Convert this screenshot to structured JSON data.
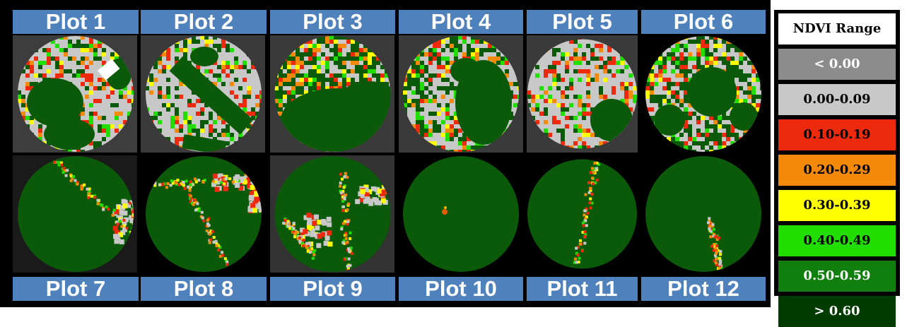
{
  "plots": [
    {
      "label": "Plot 1",
      "bg": "#3d3d3d",
      "cover": {
        "gray": 0.5,
        "red": 0.12,
        "orange": 0.07,
        "yellow": 0.05,
        "lime": 0.06,
        "green": 0.2
      },
      "blobs": [
        [
          60,
          95,
          40,
          34
        ],
        [
          80,
          140,
          36,
          22
        ],
        [
          150,
          55,
          18,
          22
        ]
      ],
      "notch": [
        [
          120,
          50,
          26,
          18
        ]
      ]
    },
    {
      "label": "Plot 2",
      "bg": "#3a3a3a",
      "cover": {
        "gray": 0.55,
        "red": 0.1,
        "orange": 0.06,
        "yellow": 0.04,
        "lime": 0.05,
        "green": 0.2
      },
      "bands": [
        [
          50,
          40,
          150,
          130,
          14
        ],
        [
          60,
          150,
          120,
          160,
          10
        ]
      ],
      "blobs": [
        [
          90,
          30,
          20,
          14
        ]
      ]
    },
    {
      "label": "Plot 3",
      "bg": "#3a3a3a",
      "cover": {
        "gray": 0.2,
        "red": 0.12,
        "orange": 0.1,
        "yellow": 0.1,
        "lime": 0.06,
        "green": 0.42
      },
      "blobs": [
        [
          95,
          120,
          80,
          45
        ],
        [
          140,
          95,
          45,
          30
        ]
      ],
      "tophalf": true
    },
    {
      "label": "Plot 4",
      "bg": "#3a3a3a",
      "cover": {
        "gray": 0.42,
        "red": 0.1,
        "orange": 0.06,
        "yellow": 0.08,
        "lime": 0.08,
        "green": 0.26
      },
      "blobs": [
        [
          120,
          95,
          40,
          60
        ],
        [
          95,
          50,
          22,
          18
        ]
      ]
    },
    {
      "label": "Plot 5",
      "bg": "#3a3a3a",
      "cover": {
        "gray": 0.6,
        "red": 0.13,
        "orange": 0.06,
        "yellow": 0.04,
        "lime": 0.05,
        "green": 0.12
      },
      "blobs": [
        [
          120,
          120,
          30,
          30
        ]
      ]
    },
    {
      "label": "Plot 6",
      "bg": "#000000",
      "cover": {
        "gray": 0.3,
        "red": 0.1,
        "orange": 0.06,
        "yellow": 0.08,
        "lime": 0.08,
        "green": 0.38
      },
      "blobs": [
        [
          100,
          80,
          35,
          35
        ],
        [
          40,
          120,
          22,
          22
        ],
        [
          145,
          115,
          20,
          20
        ]
      ],
      "diamond": true
    },
    {
      "label": "Plot 7",
      "bg": "#1a1a1a",
      "cover": {
        "green": 1
      },
      "edge": [
        [
          60,
          10,
          170,
          110
        ],
        [
          170,
          60,
          176,
          120
        ]
      ],
      "gray_region": [
        [
          140,
          60,
          40,
          60
        ]
      ]
    },
    {
      "label": "Plot 8",
      "bg": "#000000",
      "cover": {
        "green": 1
      },
      "edge": [
        [
          20,
          40,
          160,
          30
        ],
        [
          60,
          40,
          120,
          150
        ]
      ],
      "gray_region": [
        [
          100,
          25,
          60,
          20
        ],
        [
          150,
          50,
          20,
          25
        ]
      ]
    },
    {
      "label": "Plot 9",
      "bg": "#333333",
      "cover": {
        "green": 1
      },
      "edge": [
        [
          100,
          20,
          110,
          160
        ],
        [
          20,
          90,
          60,
          140
        ]
      ],
      "gray_region": [
        [
          40,
          80,
          45,
          45
        ],
        [
          120,
          40,
          40,
          25
        ]
      ]
    },
    {
      "label": "Plot 10",
      "bg": "#000000",
      "cover": {
        "green": 1
      },
      "edge": [],
      "spots": [
        [
          65,
          80,
          4,
          "#e85a00"
        ],
        [
          66,
          74,
          2,
          "#ffb000"
        ]
      ]
    },
    {
      "label": "Plot 11",
      "bg": "#000000",
      "cover": {
        "green": 1
      },
      "edge": [
        [
          95,
          10,
          70,
          150
        ]
      ]
    },
    {
      "label": "Plot 12",
      "bg": "#000000",
      "cover": {
        "green": 1
      },
      "edge": [
        [
          95,
          90,
          110,
          160
        ]
      ]
    }
  ],
  "legend": {
    "title": "NDVI Range",
    "items": [
      {
        "label": "< 0.00",
        "bg": "#8c8c8c",
        "fg": "#ffffff"
      },
      {
        "label": "0.00-0.09",
        "bg": "#c8c8c8",
        "fg": "#000000"
      },
      {
        "label": "0.10-0.19",
        "bg": "#ee2a0e",
        "fg": "#000000"
      },
      {
        "label": "0.20-0.29",
        "bg": "#f58a0a",
        "fg": "#000000"
      },
      {
        "label": "0.30-0.39",
        "bg": "#ffff00",
        "fg": "#000000"
      },
      {
        "label": "0.40-0.49",
        "bg": "#22dd00",
        "fg": "#000000"
      },
      {
        "label": "0.50-0.59",
        "bg": "#117f0d",
        "fg": "#ffffff"
      },
      {
        "label": "> 0.60",
        "bg": "#003c00",
        "fg": "#ffffff"
      }
    ]
  },
  "palette": {
    "gray": "#c8c8c8",
    "red": "#ee2a0e",
    "orange": "#f58a0a",
    "yellow": "#ffff00",
    "lime": "#22dd00",
    "green": "#0a5a0a",
    "dark": "#003c00"
  }
}
